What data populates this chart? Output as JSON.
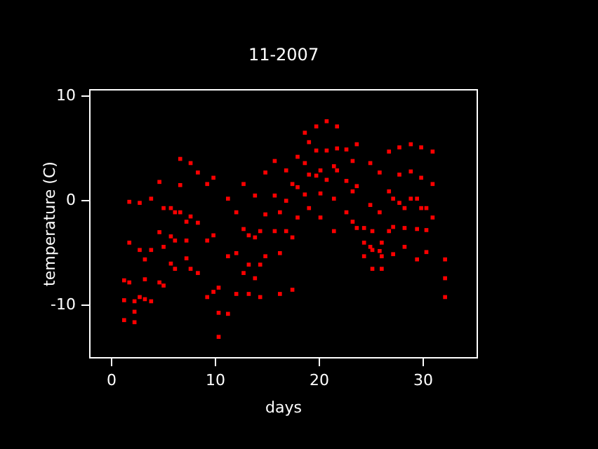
{
  "chart_data": {
    "type": "scatter",
    "title": "11-2007",
    "xlabel": "days",
    "ylabel": "temperature (C)",
    "xlim": [
      -2.1,
      35.2
    ],
    "ylim": [
      -15,
      10.6
    ],
    "xticks": [
      0,
      10,
      20,
      30
    ],
    "yticks": [
      -10,
      0,
      10
    ],
    "grid": false,
    "legend": false,
    "marker": "square",
    "series": [
      {
        "color": "#ff0000",
        "x": [
          1.2,
          1.2,
          1.2,
          1.7,
          1.7,
          1.7,
          2.2,
          2.2,
          2.2,
          2.7,
          2.7,
          2.7,
          3.2,
          3.2,
          3.2,
          3.8,
          3.8,
          3.8,
          4.6,
          4.6,
          4.6,
          5.0,
          5.0,
          5.0,
          5.7,
          5.7,
          5.7,
          6.1,
          6.1,
          6.1,
          6.6,
          6.6,
          6.6,
          7.2,
          7.2,
          7.2,
          7.6,
          7.6,
          7.6,
          8.3,
          8.3,
          8.3,
          9.2,
          9.2,
          9.2,
          9.8,
          9.8,
          9.8,
          10.3,
          10.3,
          10.3,
          11.2,
          11.2,
          11.2,
          12.0,
          12.0,
          12.0,
          12.7,
          12.7,
          12.7,
          13.2,
          13.2,
          13.2,
          13.8,
          13.8,
          13.8,
          14.3,
          14.3,
          14.3,
          14.8,
          14.8,
          14.8,
          15.7,
          15.7,
          15.7,
          16.2,
          16.2,
          16.2,
          16.8,
          16.8,
          16.8,
          17.4,
          17.4,
          17.4,
          17.9,
          17.9,
          17.9,
          18.6,
          18.6,
          18.6,
          19.0,
          19.0,
          19.0,
          19.7,
          19.7,
          19.7,
          20.1,
          20.1,
          20.1,
          20.7,
          20.7,
          20.7,
          21.4,
          21.4,
          21.4,
          21.7,
          21.7,
          21.7,
          22.6,
          22.6,
          22.6,
          23.2,
          23.2,
          23.2,
          23.6,
          23.6,
          23.6,
          24.3,
          24.3,
          24.3,
          24.9,
          24.9,
          24.9,
          25.1,
          25.1,
          25.1,
          25.8,
          25.8,
          25.8,
          26.0,
          26.0,
          26.0,
          26.7,
          26.7,
          26.7,
          27.1,
          27.1,
          27.1,
          27.7,
          27.7,
          27.7,
          28.2,
          28.2,
          28.2,
          28.8,
          28.8,
          28.8,
          29.4,
          29.4,
          29.4,
          29.8,
          29.8,
          29.8,
          30.3,
          30.3,
          30.3,
          30.9,
          30.9,
          30.9,
          32.1,
          32.1,
          32.1
        ],
        "values": [
          -7.6,
          -9.5,
          -11.4,
          -0.1,
          -4.0,
          -7.8,
          -9.6,
          -10.6,
          -11.6,
          -0.2,
          -4.7,
          -9.2,
          -5.6,
          -7.5,
          -9.4,
          0.2,
          -4.7,
          -9.6,
          1.8,
          -3.0,
          -7.8,
          -0.7,
          -4.4,
          -8.1,
          -0.7,
          -3.4,
          -6.0,
          -1.1,
          -3.8,
          -6.5,
          4.0,
          1.5,
          -1.1,
          -2.0,
          -3.8,
          -5.5,
          3.6,
          -1.5,
          -6.5,
          2.7,
          -2.1,
          -6.9,
          1.6,
          -3.8,
          -9.2,
          2.2,
          -3.3,
          -8.7,
          -8.3,
          -10.7,
          -13.0,
          0.2,
          -5.3,
          -10.8,
          -1.1,
          -5.0,
          -8.9,
          1.6,
          -2.7,
          -6.9,
          -3.3,
          -6.1,
          -8.9,
          0.5,
          -3.5,
          -7.4,
          -2.9,
          -6.1,
          -9.2,
          2.7,
          -1.3,
          -5.3,
          3.8,
          0.5,
          -2.9,
          -1.1,
          -5.0,
          -8.9,
          2.9,
          0.0,
          -2.9,
          1.6,
          -3.5,
          -8.5,
          4.2,
          1.3,
          -1.6,
          6.5,
          3.6,
          0.6,
          5.6,
          2.5,
          -0.7,
          7.1,
          4.8,
          2.4,
          2.9,
          0.7,
          -1.6,
          7.6,
          4.8,
          2.0,
          3.3,
          0.2,
          -2.9,
          7.1,
          5.0,
          2.9,
          4.9,
          1.9,
          -1.1,
          3.8,
          0.9,
          -2.0,
          5.4,
          1.4,
          -2.6,
          -2.6,
          -4.0,
          -5.3,
          3.6,
          -0.4,
          -4.4,
          -2.9,
          -4.7,
          -6.5,
          2.7,
          -1.1,
          -4.8,
          -4.0,
          -5.3,
          -6.5,
          4.7,
          0.9,
          -2.9,
          0.2,
          -2.5,
          -5.1,
          5.1,
          2.5,
          -0.2,
          -0.7,
          -2.6,
          -4.4,
          5.4,
          2.8,
          0.2,
          0.2,
          -2.7,
          -5.6,
          5.1,
          2.2,
          -0.7,
          -0.7,
          -2.8,
          -4.9,
          4.7,
          1.6,
          -1.6,
          -5.6,
          -7.4,
          -9.2
        ]
      }
    ]
  }
}
